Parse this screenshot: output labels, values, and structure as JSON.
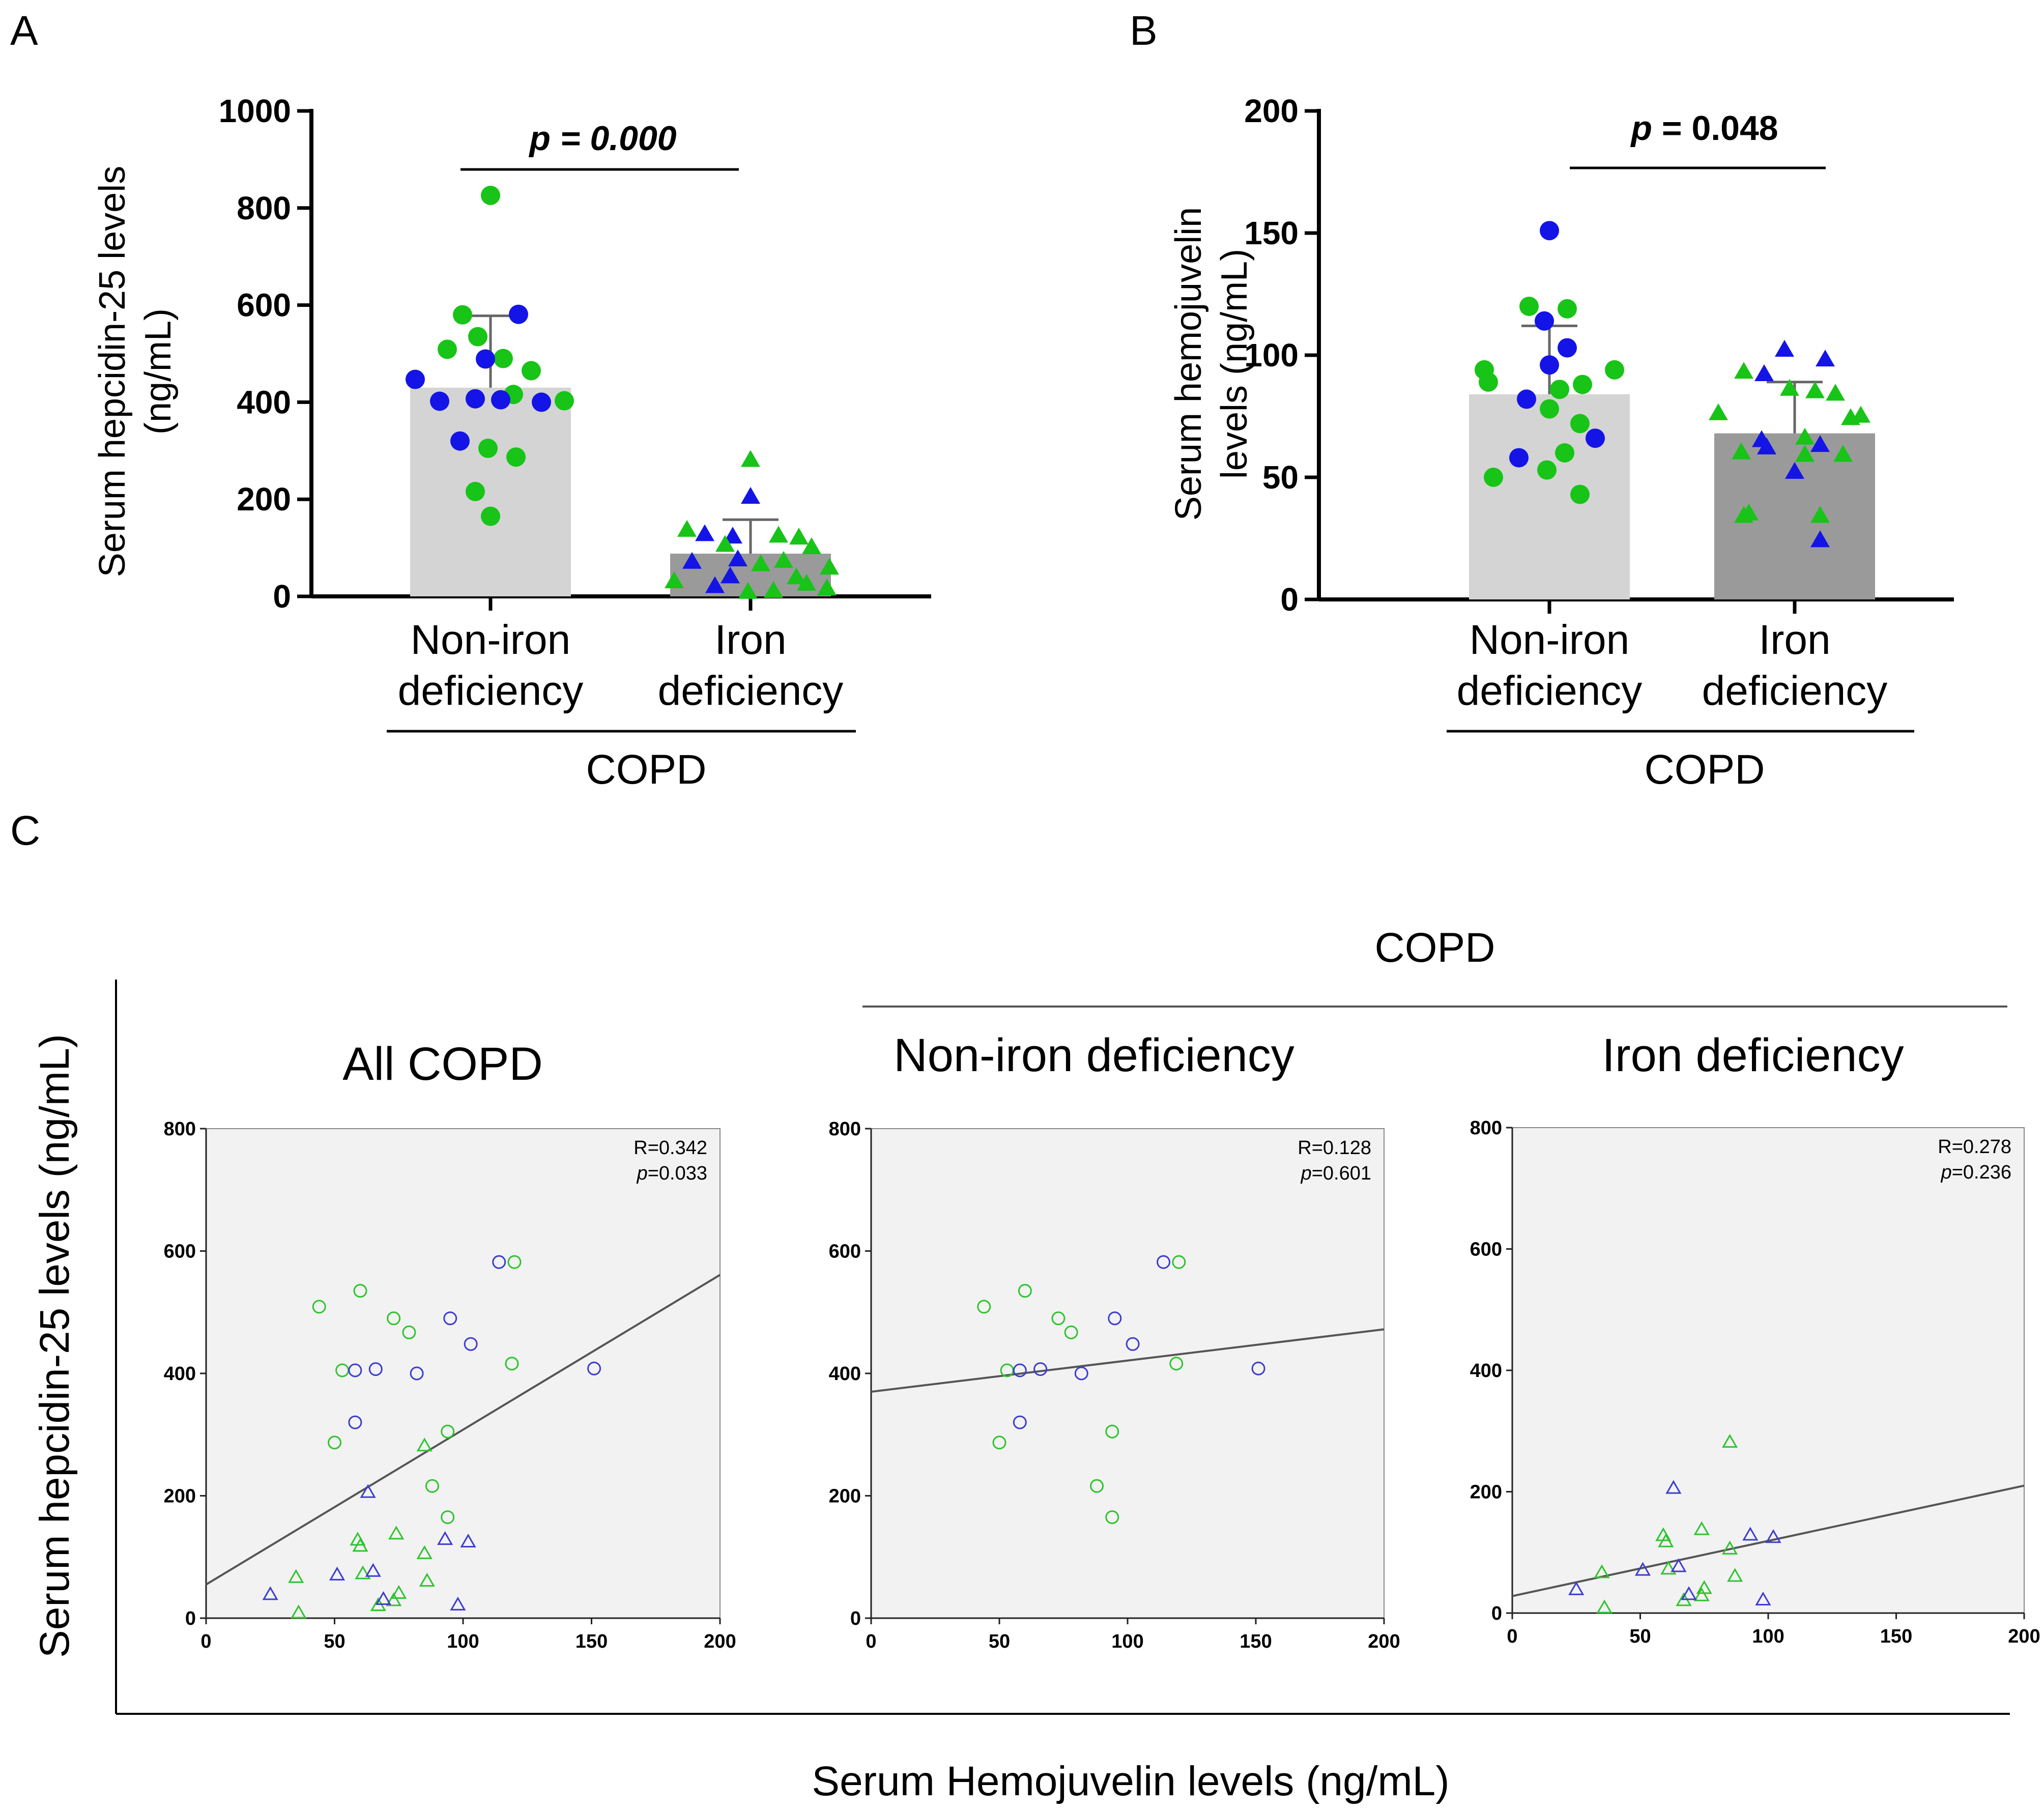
{
  "panels": {
    "a": "A",
    "b": "B",
    "c": "C"
  },
  "chart_data": [
    {
      "type": "bar",
      "panel": "A",
      "ylabel_line1": "Serum hepcidin-25 levels",
      "ylabel_line2": "(ng/mL)",
      "ylim": [
        0,
        1000
      ],
      "yticks": [
        0,
        200,
        400,
        600,
        800,
        1000
      ],
      "categories": [
        {
          "line1": "Non-iron",
          "line2": "deficiency"
        },
        {
          "line1": "Iron",
          "line2": "deficiency"
        }
      ],
      "group_label": "COPD",
      "values": [
        430,
        88
      ],
      "sd_upper": [
        578,
        158
      ],
      "significance": {
        "p": "0.000"
      },
      "colors": {
        "group1": "#d4d4d4",
        "group2": "#9a9a9a",
        "green": "#17c417",
        "blue": "#1414e6"
      },
      "points_group1": [
        {
          "y": 826,
          "c": "g"
        },
        {
          "y": 580,
          "c": "g"
        },
        {
          "y": 581,
          "c": "b"
        },
        {
          "y": 535,
          "c": "g"
        },
        {
          "y": 509,
          "c": "g"
        },
        {
          "y": 490,
          "c": "g"
        },
        {
          "y": 489,
          "c": "b"
        },
        {
          "y": 465,
          "c": "g"
        },
        {
          "y": 447,
          "c": "b"
        },
        {
          "y": 416,
          "c": "g"
        },
        {
          "y": 407,
          "c": "b"
        },
        {
          "y": 405,
          "c": "b"
        },
        {
          "y": 403,
          "c": "g"
        },
        {
          "y": 402,
          "c": "b"
        },
        {
          "y": 400,
          "c": "b"
        },
        {
          "y": 320,
          "c": "b"
        },
        {
          "y": 305,
          "c": "g"
        },
        {
          "y": 287,
          "c": "g"
        },
        {
          "y": 216,
          "c": "g"
        },
        {
          "y": 165,
          "c": "g"
        }
      ],
      "points_group2": [
        {
          "y": 280,
          "c": "g"
        },
        {
          "y": 204,
          "c": "b"
        },
        {
          "y": 136,
          "c": "g"
        },
        {
          "y": 127,
          "c": "b"
        },
        {
          "y": 124,
          "c": "g"
        },
        {
          "y": 122,
          "c": "b"
        },
        {
          "y": 120,
          "c": "g"
        },
        {
          "y": 105,
          "c": "g"
        },
        {
          "y": 100,
          "c": "g"
        },
        {
          "y": 75,
          "c": "b"
        },
        {
          "y": 72,
          "c": "g"
        },
        {
          "y": 70,
          "c": "b"
        },
        {
          "y": 65,
          "c": "g"
        },
        {
          "y": 58,
          "c": "g"
        },
        {
          "y": 40,
          "c": "b"
        },
        {
          "y": 38,
          "c": "g"
        },
        {
          "y": 30,
          "c": "g"
        },
        {
          "y": 25,
          "c": "g"
        },
        {
          "y": 20,
          "c": "b"
        },
        {
          "y": 15,
          "c": "g"
        },
        {
          "y": 10,
          "c": "g"
        },
        {
          "y": 8,
          "c": "g"
        }
      ]
    },
    {
      "type": "bar",
      "panel": "B",
      "ylabel_line1": "Serum hemojuvelin",
      "ylabel_line2": "levels (ng/mL)",
      "ylim": [
        0,
        200
      ],
      "yticks": [
        0,
        50,
        100,
        150,
        200
      ],
      "categories": [
        {
          "line1": "Non-iron",
          "line2": "deficiency"
        },
        {
          "line1": "Iron",
          "line2": "deficiency"
        }
      ],
      "group_label": "COPD",
      "values": [
        84,
        68
      ],
      "sd_upper": [
        112,
        89
      ],
      "significance": {
        "p": "0.048"
      },
      "colors": {
        "group1": "#d4d4d4",
        "group2": "#9a9a9a",
        "green": "#17c417",
        "blue": "#1414e6"
      },
      "points_group1": [
        {
          "y": 151,
          "c": "b"
        },
        {
          "y": 120,
          "c": "g"
        },
        {
          "y": 119,
          "c": "g"
        },
        {
          "y": 114,
          "c": "b"
        },
        {
          "y": 103,
          "c": "b"
        },
        {
          "y": 96,
          "c": "b"
        },
        {
          "y": 94,
          "c": "g"
        },
        {
          "y": 94,
          "c": "g"
        },
        {
          "y": 89,
          "c": "g"
        },
        {
          "y": 88,
          "c": "g"
        },
        {
          "y": 86,
          "c": "g"
        },
        {
          "y": 82,
          "c": "b"
        },
        {
          "y": 78,
          "c": "g"
        },
        {
          "y": 72,
          "c": "g"
        },
        {
          "y": 66,
          "c": "b"
        },
        {
          "y": 60,
          "c": "g"
        },
        {
          "y": 58,
          "c": "b"
        },
        {
          "y": 53,
          "c": "g"
        },
        {
          "y": 50,
          "c": "g"
        },
        {
          "y": 43,
          "c": "g"
        }
      ],
      "points_group2": [
        {
          "y": 102,
          "c": "b"
        },
        {
          "y": 98,
          "c": "b"
        },
        {
          "y": 93,
          "c": "g"
        },
        {
          "y": 92,
          "c": "b"
        },
        {
          "y": 86,
          "c": "g"
        },
        {
          "y": 85,
          "c": "g"
        },
        {
          "y": 84,
          "c": "g"
        },
        {
          "y": 76,
          "c": "g"
        },
        {
          "y": 75,
          "c": "g"
        },
        {
          "y": 74,
          "c": "g"
        },
        {
          "y": 66,
          "c": "g"
        },
        {
          "y": 65,
          "c": "b"
        },
        {
          "y": 63,
          "c": "b"
        },
        {
          "y": 62,
          "c": "b"
        },
        {
          "y": 60,
          "c": "g"
        },
        {
          "y": 59,
          "c": "g"
        },
        {
          "y": 59,
          "c": "g"
        },
        {
          "y": 52,
          "c": "b"
        },
        {
          "y": 35,
          "c": "g"
        },
        {
          "y": 34,
          "c": "g"
        },
        {
          "y": 34,
          "c": "g"
        },
        {
          "y": 24,
          "c": "b"
        }
      ]
    },
    {
      "type": "scatter",
      "panel": "C",
      "group_label": "COPD",
      "xlabel": "Serum Hemojuvelin levels (ng/mL)",
      "ylabel": "Serum hepcidin-25 levels (ng/mL)",
      "xlim": [
        0,
        200
      ],
      "ylim": [
        0,
        800
      ],
      "xticks": [
        0,
        50,
        100,
        150,
        200
      ],
      "yticks": [
        0,
        200,
        400,
        600,
        800
      ],
      "colors": {
        "plot_bg": "#f2f2f2",
        "green": "#2ec42e",
        "blue": "#3c3cd2",
        "line": "#555555"
      },
      "subplots": [
        {
          "title": "All COPD",
          "R": "R=0.342",
          "p_label": "p",
          "p_value": "=0.033",
          "fit": {
            "intercept": 55,
            "slope": 2.53
          },
          "points": [
            {
              "x": 44,
              "y": 509,
              "c": "g",
              "m": "o"
            },
            {
              "x": 60,
              "y": 535,
              "c": "g",
              "m": "o"
            },
            {
              "x": 73,
              "y": 490,
              "c": "g",
              "m": "o"
            },
            {
              "x": 79,
              "y": 467,
              "c": "g",
              "m": "o"
            },
            {
              "x": 53,
              "y": 405,
              "c": "g",
              "m": "o"
            },
            {
              "x": 119,
              "y": 416,
              "c": "g",
              "m": "o"
            },
            {
              "x": 120,
              "y": 582,
              "c": "g",
              "m": "o"
            },
            {
              "x": 94,
              "y": 305,
              "c": "g",
              "m": "o"
            },
            {
              "x": 50,
              "y": 287,
              "c": "g",
              "m": "o"
            },
            {
              "x": 88,
              "y": 216,
              "c": "g",
              "m": "o"
            },
            {
              "x": 94,
              "y": 165,
              "c": "g",
              "m": "o"
            },
            {
              "x": 114,
              "y": 582,
              "c": "b",
              "m": "o"
            },
            {
              "x": 95,
              "y": 490,
              "c": "b",
              "m": "o"
            },
            {
              "x": 103,
              "y": 448,
              "c": "b",
              "m": "o"
            },
            {
              "x": 66,
              "y": 407,
              "c": "b",
              "m": "o"
            },
            {
              "x": 58,
              "y": 405,
              "c": "b",
              "m": "o"
            },
            {
              "x": 82,
              "y": 400,
              "c": "b",
              "m": "o"
            },
            {
              "x": 151,
              "y": 408,
              "c": "b",
              "m": "o"
            },
            {
              "x": 58,
              "y": 320,
              "c": "b",
              "m": "o"
            },
            {
              "x": 85,
              "y": 281,
              "c": "g",
              "m": "t"
            },
            {
              "x": 74,
              "y": 137,
              "c": "g",
              "m": "t"
            },
            {
              "x": 59,
              "y": 127,
              "c": "g",
              "m": "t"
            },
            {
              "x": 60,
              "y": 117,
              "c": "g",
              "m": "t"
            },
            {
              "x": 85,
              "y": 105,
              "c": "g",
              "m": "t"
            },
            {
              "x": 61,
              "y": 72,
              "c": "g",
              "m": "t"
            },
            {
              "x": 86,
              "y": 60,
              "c": "g",
              "m": "t"
            },
            {
              "x": 35,
              "y": 66,
              "c": "g",
              "m": "t"
            },
            {
              "x": 75,
              "y": 40,
              "c": "g",
              "m": "t"
            },
            {
              "x": 73,
              "y": 28,
              "c": "g",
              "m": "t"
            },
            {
              "x": 67,
              "y": 20,
              "c": "g",
              "m": "t"
            },
            {
              "x": 36,
              "y": 8,
              "c": "g",
              "m": "t"
            },
            {
              "x": 63,
              "y": 205,
              "c": "b",
              "m": "t"
            },
            {
              "x": 93,
              "y": 128,
              "c": "b",
              "m": "t"
            },
            {
              "x": 102,
              "y": 124,
              "c": "b",
              "m": "t"
            },
            {
              "x": 65,
              "y": 76,
              "c": "b",
              "m": "t"
            },
            {
              "x": 51,
              "y": 70,
              "c": "b",
              "m": "t"
            },
            {
              "x": 25,
              "y": 38,
              "c": "b",
              "m": "t"
            },
            {
              "x": 69,
              "y": 30,
              "c": "b",
              "m": "t"
            },
            {
              "x": 98,
              "y": 21,
              "c": "b",
              "m": "t"
            }
          ]
        },
        {
          "title": "Non-iron deficiency",
          "R": "R=0.128",
          "p_label": "p",
          "p_value": "=0.601",
          "fit": {
            "intercept": 370,
            "slope": 0.51
          },
          "points": [
            {
              "x": 44,
              "y": 509,
              "c": "g",
              "m": "o"
            },
            {
              "x": 60,
              "y": 535,
              "c": "g",
              "m": "o"
            },
            {
              "x": 73,
              "y": 490,
              "c": "g",
              "m": "o"
            },
            {
              "x": 78,
              "y": 467,
              "c": "g",
              "m": "o"
            },
            {
              "x": 53,
              "y": 405,
              "c": "g",
              "m": "o"
            },
            {
              "x": 119,
              "y": 416,
              "c": "g",
              "m": "o"
            },
            {
              "x": 120,
              "y": 582,
              "c": "g",
              "m": "o"
            },
            {
              "x": 94,
              "y": 305,
              "c": "g",
              "m": "o"
            },
            {
              "x": 50,
              "y": 287,
              "c": "g",
              "m": "o"
            },
            {
              "x": 88,
              "y": 216,
              "c": "g",
              "m": "o"
            },
            {
              "x": 94,
              "y": 165,
              "c": "g",
              "m": "o"
            },
            {
              "x": 114,
              "y": 582,
              "c": "b",
              "m": "o"
            },
            {
              "x": 95,
              "y": 490,
              "c": "b",
              "m": "o"
            },
            {
              "x": 102,
              "y": 448,
              "c": "b",
              "m": "o"
            },
            {
              "x": 66,
              "y": 407,
              "c": "b",
              "m": "o"
            },
            {
              "x": 58,
              "y": 405,
              "c": "b",
              "m": "o"
            },
            {
              "x": 82,
              "y": 400,
              "c": "b",
              "m": "o"
            },
            {
              "x": 151,
              "y": 408,
              "c": "b",
              "m": "o"
            },
            {
              "x": 58,
              "y": 320,
              "c": "b",
              "m": "o"
            }
          ]
        },
        {
          "title": "Iron deficiency",
          "R": "R=0.278",
          "p_label": "p",
          "p_value": "=0.236",
          "fit": {
            "intercept": 28,
            "slope": 0.91
          },
          "points": [
            {
              "x": 85,
              "y": 281,
              "c": "g",
              "m": "t"
            },
            {
              "x": 74,
              "y": 137,
              "c": "g",
              "m": "t"
            },
            {
              "x": 59,
              "y": 127,
              "c": "g",
              "m": "t"
            },
            {
              "x": 60,
              "y": 117,
              "c": "g",
              "m": "t"
            },
            {
              "x": 85,
              "y": 105,
              "c": "g",
              "m": "t"
            },
            {
              "x": 61,
              "y": 72,
              "c": "g",
              "m": "t"
            },
            {
              "x": 87,
              "y": 60,
              "c": "g",
              "m": "t"
            },
            {
              "x": 35,
              "y": 66,
              "c": "g",
              "m": "t"
            },
            {
              "x": 75,
              "y": 40,
              "c": "g",
              "m": "t"
            },
            {
              "x": 74,
              "y": 28,
              "c": "g",
              "m": "t"
            },
            {
              "x": 67,
              "y": 20,
              "c": "g",
              "m": "t"
            },
            {
              "x": 36,
              "y": 8,
              "c": "g",
              "m": "t"
            },
            {
              "x": 63,
              "y": 205,
              "c": "b",
              "m": "t"
            },
            {
              "x": 93,
              "y": 128,
              "c": "b",
              "m": "t"
            },
            {
              "x": 102,
              "y": 124,
              "c": "b",
              "m": "t"
            },
            {
              "x": 65,
              "y": 76,
              "c": "b",
              "m": "t"
            },
            {
              "x": 51,
              "y": 70,
              "c": "b",
              "m": "t"
            },
            {
              "x": 25,
              "y": 38,
              "c": "b",
              "m": "t"
            },
            {
              "x": 69,
              "y": 30,
              "c": "b",
              "m": "t"
            },
            {
              "x": 98,
              "y": 21,
              "c": "b",
              "m": "t"
            }
          ]
        }
      ]
    }
  ]
}
